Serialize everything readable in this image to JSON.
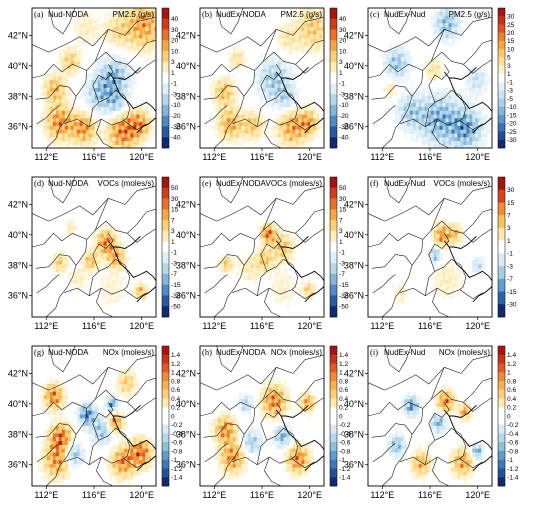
{
  "figure": {
    "panels": [
      {
        "id": "a",
        "panel_label": "(a)",
        "case_label": "Nud-NODA",
        "variable_label": "PM2.5 (g/s)",
        "colorbar_ticks": [
          "40",
          "30",
          "20",
          "10",
          "3",
          "1",
          "-1",
          "-3",
          "-10",
          "-20",
          "-30",
          "-40"
        ],
        "field": {
          "scale": 40,
          "blobs": [
            {
              "lon": 112.6,
              "lat": 38.6,
              "radius_deg": 0.9,
              "value": 22
            },
            {
              "lon": 113.0,
              "lat": 36.4,
              "radius_deg": 1.1,
              "value": 30
            },
            {
              "lon": 115.0,
              "lat": 36.0,
              "radius_deg": 1.0,
              "value": 28
            },
            {
              "lon": 113.9,
              "lat": 40.4,
              "radius_deg": 0.8,
              "value": 18
            },
            {
              "lon": 117.6,
              "lat": 39.4,
              "radius_deg": 1.3,
              "value": -24
            },
            {
              "lon": 116.4,
              "lat": 38.2,
              "radius_deg": 1.2,
              "value": -20
            },
            {
              "lon": 117.8,
              "lat": 37.6,
              "radius_deg": 0.8,
              "value": -16
            },
            {
              "lon": 118.3,
              "lat": 35.8,
              "radius_deg": 1.2,
              "value": 32
            },
            {
              "lon": 119.7,
              "lat": 36.3,
              "radius_deg": 0.9,
              "value": 25
            },
            {
              "lon": 120.1,
              "lat": 42.8,
              "radius_deg": 1.5,
              "value": 26
            },
            {
              "lon": 117.9,
              "lat": 42.4,
              "radius_deg": 1.2,
              "value": 12
            },
            {
              "lon": 115.2,
              "lat": 42.6,
              "radius_deg": 1.1,
              "value": 8
            }
          ]
        }
      },
      {
        "id": "b",
        "panel_label": "(b)",
        "case_label": "NudEx-NODA",
        "variable_label": "PM2.5 (g/s)",
        "colorbar_ticks": [
          "40",
          "30",
          "20",
          "10",
          "3",
          "1",
          "-1",
          "-3",
          "-10",
          "-20",
          "-30",
          "-40"
        ],
        "field": {
          "scale": 40,
          "blobs": [
            {
              "lon": 112.7,
              "lat": 38.4,
              "radius_deg": 0.9,
              "value": 20
            },
            {
              "lon": 113.2,
              "lat": 36.3,
              "radius_deg": 1.0,
              "value": 24
            },
            {
              "lon": 115.1,
              "lat": 36.2,
              "radius_deg": 0.9,
              "value": 18
            },
            {
              "lon": 116.9,
              "lat": 39.2,
              "radius_deg": 1.4,
              "value": -20
            },
            {
              "lon": 117.9,
              "lat": 37.9,
              "radius_deg": 0.9,
              "value": -14
            },
            {
              "lon": 118.4,
              "lat": 36.1,
              "radius_deg": 1.2,
              "value": 26
            },
            {
              "lon": 119.8,
              "lat": 36.4,
              "radius_deg": 0.8,
              "value": 22
            },
            {
              "lon": 120.2,
              "lat": 42.6,
              "radius_deg": 1.4,
              "value": 18
            },
            {
              "lon": 118.0,
              "lat": 41.9,
              "radius_deg": 1.0,
              "value": 10
            },
            {
              "lon": 113.8,
              "lat": 40.6,
              "radius_deg": 0.7,
              "value": 12
            }
          ]
        }
      },
      {
        "id": "c",
        "panel_label": "(c)",
        "case_label": "NudEx-Nud",
        "variable_label": "PM2.5 (g/s)",
        "colorbar_ticks": [
          "30",
          "25",
          "20",
          "15",
          "10",
          "5",
          "3",
          "1",
          "-1",
          "-3",
          "-5",
          "-10",
          "-15",
          "-20",
          "-25",
          "-30"
        ],
        "field": {
          "scale": 30,
          "blobs": [
            {
              "lon": 116.6,
              "lat": 36.6,
              "radius_deg": 1.6,
              "value": -20
            },
            {
              "lon": 118.9,
              "lat": 36.0,
              "radius_deg": 1.3,
              "value": -22
            },
            {
              "lon": 114.2,
              "lat": 37.1,
              "radius_deg": 1.1,
              "value": -14
            },
            {
              "lon": 113.1,
              "lat": 40.3,
              "radius_deg": 1.0,
              "value": -16
            },
            {
              "lon": 117.3,
              "lat": 42.9,
              "radius_deg": 1.0,
              "value": -18
            },
            {
              "lon": 116.2,
              "lat": 39.8,
              "radius_deg": 0.8,
              "value": 9
            },
            {
              "lon": 112.6,
              "lat": 38.6,
              "radius_deg": 0.6,
              "value": 8
            },
            {
              "lon": 119.8,
              "lat": 39.2,
              "radius_deg": 0.9,
              "value": -10
            }
          ]
        }
      },
      {
        "id": "d",
        "panel_label": "(d)",
        "case_label": "Nud-NODA",
        "variable_label": "VOCs (moles/s)",
        "colorbar_ticks": [
          "50",
          "30",
          "15",
          "7",
          "3",
          "1",
          "-1",
          "-3",
          "-7",
          "-15",
          "-30",
          "-50"
        ],
        "field": {
          "scale": 50,
          "blobs": [
            {
              "lon": 116.9,
              "lat": 39.6,
              "radius_deg": 0.8,
              "value": 40
            },
            {
              "lon": 117.8,
              "lat": 38.6,
              "radius_deg": 0.7,
              "value": 30
            },
            {
              "lon": 115.6,
              "lat": 38.4,
              "radius_deg": 0.6,
              "value": 26
            },
            {
              "lon": 113.0,
              "lat": 38.3,
              "radius_deg": 0.6,
              "value": 22
            },
            {
              "lon": 114.5,
              "lat": 37.2,
              "radius_deg": 0.8,
              "value": 10
            },
            {
              "lon": 117.4,
              "lat": 36.6,
              "radius_deg": 1.2,
              "value": 8
            },
            {
              "lon": 119.8,
              "lat": 36.4,
              "radius_deg": 0.5,
              "value": 28
            },
            {
              "lon": 113.9,
              "lat": 40.6,
              "radius_deg": 0.5,
              "value": 12
            }
          ]
        }
      },
      {
        "id": "e",
        "panel_label": "(e)",
        "case_label": "NudEx-NODA",
        "variable_label": "VOCs (moles/s)",
        "colorbar_ticks": [
          "50",
          "30",
          "15",
          "7",
          "3",
          "1",
          "-1",
          "-3",
          "-7",
          "-15",
          "-30",
          "-50"
        ],
        "field": {
          "scale": 50,
          "blobs": [
            {
              "lon": 116.4,
              "lat": 40.2,
              "radius_deg": 0.6,
              "value": 42
            },
            {
              "lon": 117.6,
              "lat": 39.3,
              "radius_deg": 0.9,
              "value": 24
            },
            {
              "lon": 116.1,
              "lat": 38.5,
              "radius_deg": 0.7,
              "value": 22
            },
            {
              "lon": 114.8,
              "lat": 37.9,
              "radius_deg": 0.9,
              "value": 12
            },
            {
              "lon": 112.9,
              "lat": 38.2,
              "radius_deg": 0.5,
              "value": 24
            },
            {
              "lon": 117.6,
              "lat": 36.6,
              "radius_deg": 1.3,
              "value": 8
            },
            {
              "lon": 119.8,
              "lat": 36.5,
              "radius_deg": 0.5,
              "value": 22
            }
          ]
        }
      },
      {
        "id": "f",
        "panel_label": "(f)",
        "case_label": "NudEx-Nud",
        "variable_label": "VOCs (moles/s)",
        "colorbar_ticks": [
          "30",
          "15",
          "7",
          "3",
          "1",
          "-1",
          "-3",
          "-7",
          "-15",
          "-30"
        ],
        "field": {
          "scale": 30,
          "blobs": [
            {
              "lon": 116.9,
              "lat": 40.1,
              "radius_deg": 0.7,
              "value": 22
            },
            {
              "lon": 118.0,
              "lat": 40.2,
              "radius_deg": 0.6,
              "value": 14
            },
            {
              "lon": 116.3,
              "lat": 38.8,
              "radius_deg": 0.5,
              "value": -18
            },
            {
              "lon": 117.3,
              "lat": 37.2,
              "radius_deg": 1.3,
              "value": 6
            },
            {
              "lon": 113.4,
              "lat": 36.3,
              "radius_deg": 0.8,
              "value": 5
            },
            {
              "lon": 119.9,
              "lat": 38.1,
              "radius_deg": 0.5,
              "value": -12
            }
          ]
        }
      },
      {
        "id": "g",
        "panel_label": "(g)",
        "case_label": "Nud-NODA",
        "variable_label": "NOx (moles/s)",
        "colorbar_ticks": [
          "1.4",
          "1.2",
          "1",
          "0.8",
          "0.6",
          "0.4",
          "0.2",
          "0",
          "-0.2",
          "-0.4",
          "-0.6",
          "-0.8",
          "-1",
          "-1.2",
          "-1.4"
        ],
        "field": {
          "scale": 1.4,
          "blobs": [
            {
              "lon": 112.5,
              "lat": 40.6,
              "radius_deg": 0.8,
              "value": 1.1
            },
            {
              "lon": 113.1,
              "lat": 37.9,
              "radius_deg": 0.9,
              "value": 1.2
            },
            {
              "lon": 112.8,
              "lat": 36.4,
              "radius_deg": 1.1,
              "value": 1.0
            },
            {
              "lon": 115.3,
              "lat": 39.4,
              "radius_deg": 0.7,
              "value": -1.2
            },
            {
              "lon": 117.4,
              "lat": 40.1,
              "radius_deg": 0.5,
              "value": -1.1
            },
            {
              "lon": 116.6,
              "lat": 38.4,
              "radius_deg": 0.9,
              "value": -0.8
            },
            {
              "lon": 117.6,
              "lat": 38.9,
              "radius_deg": 0.7,
              "value": 1.1
            },
            {
              "lon": 114.1,
              "lat": 36.8,
              "radius_deg": 0.8,
              "value": -0.9
            },
            {
              "lon": 118.3,
              "lat": 36.3,
              "radius_deg": 1.0,
              "value": 1.0
            },
            {
              "lon": 119.8,
              "lat": 36.9,
              "radius_deg": 0.9,
              "value": 1.2
            },
            {
              "lon": 118.6,
              "lat": 41.5,
              "radius_deg": 0.8,
              "value": 0.6
            }
          ]
        }
      },
      {
        "id": "h",
        "panel_label": "(h)",
        "case_label": "NudEx-NODA",
        "variable_label": "NOx (moles/s)",
        "colorbar_ticks": [
          "1.4",
          "1.2",
          "1",
          "0.8",
          "0.6",
          "0.4",
          "0.2",
          "0",
          "-0.2",
          "-0.4",
          "-0.6",
          "-0.8",
          "-1",
          "-1.2",
          "-1.4"
        ],
        "field": {
          "scale": 1.4,
          "blobs": [
            {
              "lon": 116.9,
              "lat": 40.3,
              "radius_deg": 1.0,
              "value": 1.1
            },
            {
              "lon": 112.8,
              "lat": 38.4,
              "radius_deg": 0.9,
              "value": 1.0
            },
            {
              "lon": 113.4,
              "lat": 36.6,
              "radius_deg": 1.0,
              "value": 1.0
            },
            {
              "lon": 115.0,
              "lat": 37.6,
              "radius_deg": 0.8,
              "value": -0.7
            },
            {
              "lon": 117.6,
              "lat": 38.0,
              "radius_deg": 0.7,
              "value": -0.9
            },
            {
              "lon": 118.9,
              "lat": 36.5,
              "radius_deg": 0.9,
              "value": 1.1
            },
            {
              "lon": 119.7,
              "lat": 40.2,
              "radius_deg": 0.6,
              "value": 0.9
            },
            {
              "lon": 114.5,
              "lat": 40.1,
              "radius_deg": 0.6,
              "value": -0.6
            }
          ]
        }
      },
      {
        "id": "i",
        "panel_label": "(i)",
        "case_label": "NudEx-Nud",
        "variable_label": "NOx (moles/s)",
        "colorbar_ticks": [
          "1.4",
          "1.2",
          "1",
          "0.8",
          "0.6",
          "0.4",
          "0.2",
          "0",
          "-0.2",
          "-0.4",
          "-0.6",
          "-0.8",
          "-1",
          "-1.2",
          "-1.4"
        ],
        "field": {
          "scale": 1.4,
          "blobs": [
            {
              "lon": 114.3,
              "lat": 40.0,
              "radius_deg": 0.6,
              "value": -1.1
            },
            {
              "lon": 117.2,
              "lat": 40.3,
              "radius_deg": 0.7,
              "value": 1.1
            },
            {
              "lon": 116.6,
              "lat": 38.9,
              "radius_deg": 0.6,
              "value": -0.9
            },
            {
              "lon": 118.8,
              "lat": 39.6,
              "radius_deg": 0.5,
              "value": 0.9
            },
            {
              "lon": 113.1,
              "lat": 37.4,
              "radius_deg": 0.7,
              "value": -0.8
            },
            {
              "lon": 115.1,
              "lat": 36.2,
              "radius_deg": 0.8,
              "value": 0.8
            },
            {
              "lon": 118.6,
              "lat": 36.3,
              "radius_deg": 0.9,
              "value": 0.9
            },
            {
              "lon": 119.8,
              "lat": 37.0,
              "radius_deg": 0.5,
              "value": -1.0
            }
          ]
        }
      }
    ],
    "map_extent": {
      "lon_min": 110.8,
      "lon_max": 121.2,
      "lat_min": 34.6,
      "lat_max": 43.8
    },
    "lon_ticks": [
      {
        "value": 112,
        "label": "112°E"
      },
      {
        "value": 116,
        "label": "116°E"
      },
      {
        "value": 120,
        "label": "120°E"
      }
    ],
    "lat_ticks": [
      {
        "value": 42,
        "label": "42°N"
      },
      {
        "value": 40,
        "label": "40°N"
      },
      {
        "value": 38,
        "label": "38°N"
      },
      {
        "value": 36,
        "label": "36°N"
      }
    ],
    "colormap": {
      "positive": [
        "#fde9ad",
        "#f9c35c",
        "#f08a33",
        "#d8431c",
        "#a8150f"
      ],
      "negative": [
        "#d9ecf6",
        "#a6cde4",
        "#5e9fce",
        "#2c64ab",
        "#102a73"
      ],
      "neutral": "#ffffff"
    }
  }
}
